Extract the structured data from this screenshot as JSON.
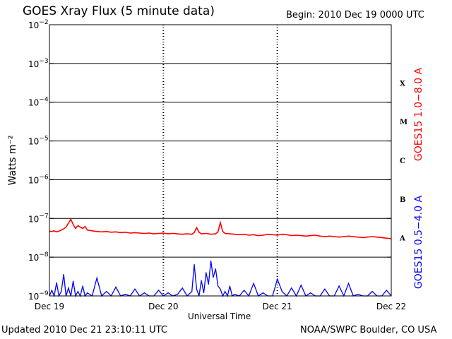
{
  "header": {
    "title": "GOES Xray Flux (5 minute data)",
    "begin": "Begin:  2010 Dec 19 0000 UTC"
  },
  "footer": {
    "updated": "Updated 2010 Dec 21 23:10:11 UTC",
    "credit": "NOAA/SWPC Boulder, CO USA"
  },
  "colors": {
    "long_channel": "#ff0000",
    "short_channel": "#0000ff",
    "axes": "#000000"
  },
  "chart_data": {
    "type": "line",
    "title": "GOES Xray Flux (5 minute data)",
    "xlabel": "Universal Time",
    "ylabel": "Watts m⁻²",
    "yscale": "log",
    "ylim": [
      1e-09,
      0.01
    ],
    "xlim": [
      0,
      72
    ],
    "x_unit": "hours since 2010 Dec 19 0000 UTC",
    "x_ticks": [
      {
        "x": 0,
        "label": "Dec 19"
      },
      {
        "x": 24,
        "label": "Dec 20"
      },
      {
        "x": 48,
        "label": "Dec 21"
      },
      {
        "x": 72,
        "label": "Dec 22"
      }
    ],
    "y_ticks": [
      {
        "exp": -2,
        "base": "10",
        "sup": "−2"
      },
      {
        "exp": -3,
        "base": "10",
        "sup": "−3"
      },
      {
        "exp": -4,
        "base": "10",
        "sup": "−4"
      },
      {
        "exp": -5,
        "base": "10",
        "sup": "−5"
      },
      {
        "exp": -6,
        "base": "10",
        "sup": "−6"
      },
      {
        "exp": -7,
        "base": "10",
        "sup": "−7"
      },
      {
        "exp": -8,
        "base": "10",
        "sup": "−8"
      },
      {
        "exp": -9,
        "base": "10",
        "sup": "−9"
      }
    ],
    "flare_classes": [
      {
        "label": "X",
        "exp": -3.5
      },
      {
        "label": "M",
        "exp": -4.5
      },
      {
        "label": "C",
        "exp": -5.5
      },
      {
        "label": "B",
        "exp": -6.5
      },
      {
        "label": "A",
        "exp": -7.5
      }
    ],
    "grid": "horizontal lines at each decade, dotted verticals at day boundaries",
    "series": [
      {
        "name": "GOES15 1.0−8.0 A",
        "color": "#ff0000",
        "x": [
          0,
          0.5,
          1,
          1.5,
          2,
          2.5,
          3,
          3.5,
          4,
          4.5,
          5,
          5.5,
          6,
          6.5,
          7,
          7.5,
          8,
          9,
          10,
          11,
          12,
          13,
          14,
          15,
          16,
          17,
          18,
          19,
          20,
          21,
          22,
          23,
          24,
          25,
          26,
          27,
          28,
          29,
          30,
          30.5,
          31,
          31.5,
          32,
          33,
          34,
          35,
          35.5,
          36,
          36.5,
          37,
          38,
          39,
          40,
          41,
          42,
          43,
          44,
          45,
          46,
          47,
          48,
          49,
          50,
          51,
          52,
          53,
          54,
          55,
          56,
          57,
          58,
          59,
          60,
          61,
          62,
          63,
          64,
          65,
          66,
          67,
          68,
          69,
          70,
          71,
          72
        ],
        "y": [
          4.7e-08,
          4.6e-08,
          4.8e-08,
          4.5e-08,
          4.7e-08,
          5e-08,
          5.4e-08,
          6e-08,
          7.5e-08,
          9.5e-08,
          7e-08,
          5.5e-08,
          6.5e-08,
          6e-08,
          5.5e-08,
          6.2e-08,
          5e-08,
          4.8e-08,
          4.6e-08,
          4.5e-08,
          4.6e-08,
          4.4e-08,
          4.5e-08,
          4.3e-08,
          4.4e-08,
          4.2e-08,
          4.3e-08,
          4.2e-08,
          4.1e-08,
          4.2e-08,
          4e-08,
          4.1e-08,
          4.2e-08,
          4e-08,
          4.1e-08,
          4e-08,
          3.9e-08,
          4e-08,
          3.9e-08,
          4.3e-08,
          5.8e-08,
          4.4e-08,
          4e-08,
          4.1e-08,
          3.9e-08,
          4e-08,
          4.5e-08,
          7.8e-08,
          4.6e-08,
          4.1e-08,
          4e-08,
          3.9e-08,
          3.8e-08,
          3.9e-08,
          3.7e-08,
          3.8e-08,
          3.6e-08,
          3.7e-08,
          3.9e-08,
          3.8e-08,
          3.7e-08,
          3.9e-08,
          3.8e-08,
          3.6e-08,
          3.7e-08,
          3.6e-08,
          3.5e-08,
          3.6e-08,
          3.7e-08,
          3.5e-08,
          3.4e-08,
          3.5e-08,
          3.4e-08,
          3.3e-08,
          3.4e-08,
          3.5e-08,
          3.4e-08,
          3.3e-08,
          3.2e-08,
          3.3e-08,
          3.4e-08,
          3.3e-08,
          3.2e-08,
          3.1e-08,
          3e-08
        ]
      },
      {
        "name": "GOES15 0.5−4.0 A",
        "color": "#0000ff",
        "x": [
          0,
          0.5,
          1,
          1.5,
          2,
          2.5,
          3,
          3.5,
          4,
          4.5,
          5,
          5.5,
          6,
          6.5,
          7,
          7.5,
          8,
          9,
          10,
          11,
          12,
          13,
          14,
          15,
          16,
          17,
          18,
          19,
          20,
          21,
          22,
          23,
          24,
          25,
          26,
          27,
          28,
          29,
          30,
          30.5,
          31,
          31.5,
          32,
          32.5,
          33,
          33.5,
          34,
          34.5,
          35,
          35.5,
          36,
          36.5,
          37,
          37.5,
          38,
          38.5,
          39,
          40,
          41,
          42,
          43,
          44,
          45,
          46,
          47,
          48,
          49,
          50,
          51,
          52,
          53,
          54,
          55,
          56,
          57,
          58,
          59,
          60,
          61,
          62,
          63,
          64,
          65,
          66,
          67,
          68,
          69,
          70,
          71,
          72
        ],
        "y": [
          1e-09,
          1.4e-09,
          1e-09,
          2.2e-09,
          1e-09,
          1.3e-09,
          3.6e-09,
          1e-09,
          1.6e-09,
          1e-09,
          2.4e-09,
          1e-09,
          1.3e-09,
          1e-09,
          1.8e-09,
          1e-09,
          1.2e-09,
          1e-09,
          2.9e-09,
          1e-09,
          1.3e-09,
          1e-09,
          1.7e-09,
          1e-09,
          1.1e-09,
          1e-09,
          1.5e-09,
          1e-09,
          1.2e-09,
          1e-09,
          1e-09,
          1.4e-09,
          1e-09,
          1.2e-09,
          1e-09,
          1.1e-09,
          1.6e-09,
          1e-09,
          1.3e-09,
          6.5e-09,
          1.5e-09,
          1e-09,
          2.5e-09,
          1.2e-09,
          4e-09,
          2e-09,
          8e-09,
          3e-09,
          5e-09,
          1.8e-09,
          1.5e-09,
          1e-09,
          1.3e-09,
          1e-09,
          1.8e-09,
          1e-09,
          1.1e-09,
          1e-09,
          1.4e-09,
          1e-09,
          2.1e-09,
          1e-09,
          1.2e-09,
          1e-09,
          1e-09,
          2.7e-09,
          1.3e-09,
          1e-09,
          1.6e-09,
          1e-09,
          1.9e-09,
          1e-09,
          1.2e-09,
          1e-09,
          1e-09,
          1.5e-09,
          1e-09,
          1e-09,
          1.8e-09,
          1e-09,
          2.1e-09,
          1e-09,
          1.1e-09,
          1e-09,
          1e-09,
          1.3e-09,
          1e-09,
          1e-09,
          1.4e-09,
          1e-09
        ]
      }
    ]
  }
}
